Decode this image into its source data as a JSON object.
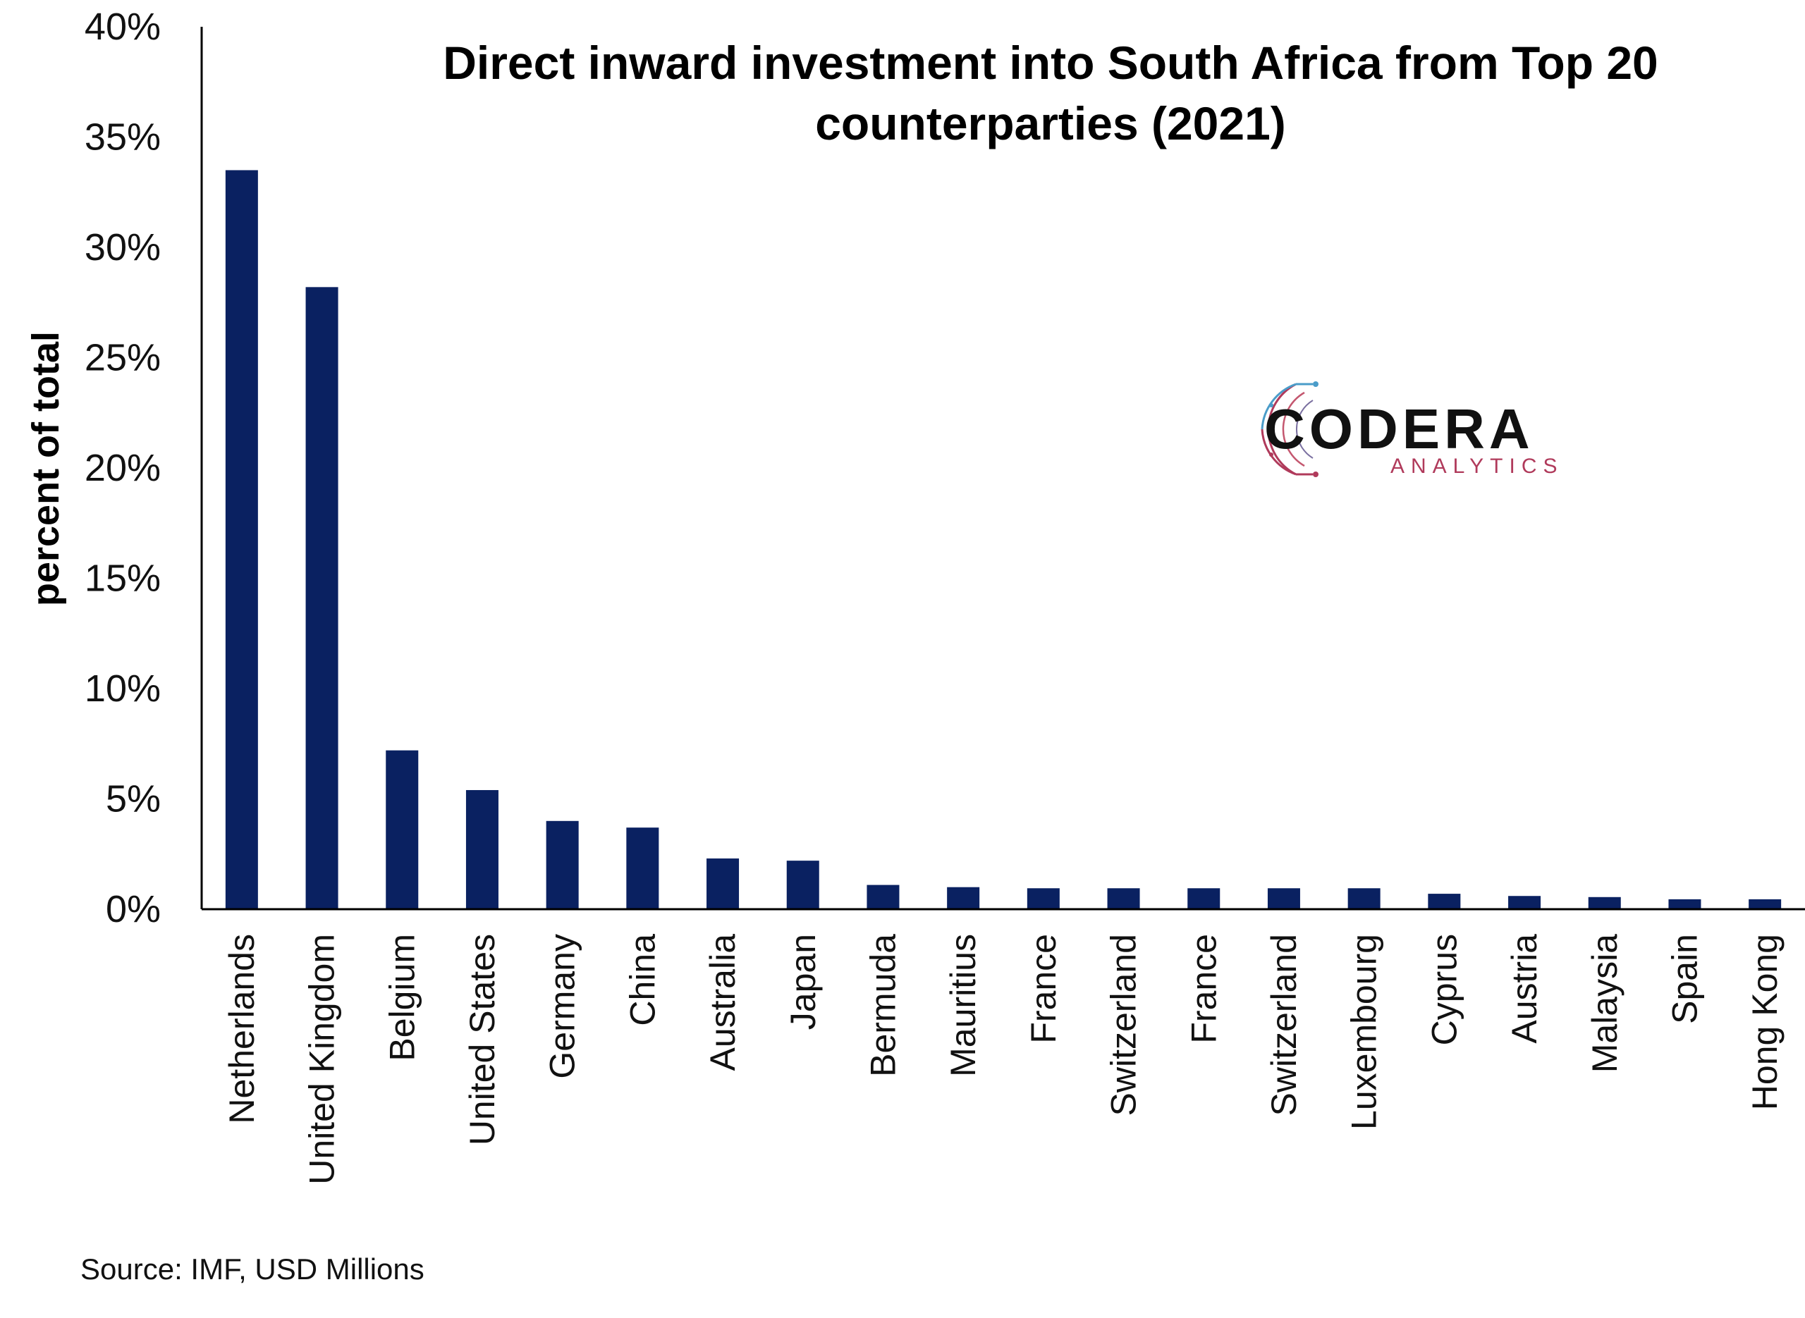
{
  "chart_data": {
    "type": "bar",
    "title_lines": [
      "Direct inward investment into South Africa from Top 20",
      "counterparties (2021)"
    ],
    "ylabel": "percent of total",
    "xlabel": "",
    "ylim": [
      0,
      40
    ],
    "yticks": [
      0,
      5,
      10,
      15,
      20,
      25,
      30,
      35,
      40
    ],
    "ytick_labels": [
      "0%",
      "5%",
      "10%",
      "15%",
      "20%",
      "25%",
      "30%",
      "35%",
      "40%"
    ],
    "categories": [
      "Netherlands",
      "United Kingdom",
      "Belgium",
      "United States",
      "Germany",
      "China",
      "Australia",
      "Japan",
      "Bermuda",
      "Mauritius",
      "France",
      "Switzerland",
      "France",
      "Switzerland",
      "Luxembourg",
      "Cyprus",
      "Austria",
      "Malaysia",
      "Spain",
      "Hong Kong"
    ],
    "values": [
      33.5,
      28.2,
      7.2,
      5.4,
      4.0,
      3.7,
      2.3,
      2.2,
      1.1,
      1.0,
      0.95,
      0.95,
      0.95,
      0.95,
      0.95,
      0.7,
      0.6,
      0.55,
      0.45,
      0.45
    ],
    "bar_color": "#0a2161",
    "grid": false,
    "legend": "none"
  },
  "source": "Source: IMF, USD Millions",
  "logo": {
    "name": "CODERA",
    "subtitle": "ANALYTICS",
    "colors": {
      "text": "#111111",
      "accent_red": "#b03a5b",
      "accent_blue": "#4a9cc9"
    }
  }
}
